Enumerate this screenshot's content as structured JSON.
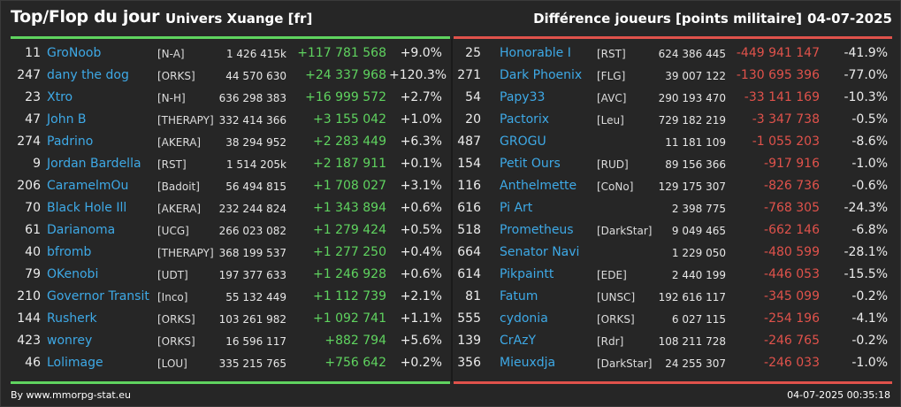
{
  "header": {
    "title": "Top/Flop du jour",
    "universe": "Univers Xuange [fr]",
    "metric": "Différence joueurs [points militaire]",
    "date": "04-07-2025"
  },
  "colors": {
    "top_accent": "#5fd35f",
    "flop_accent": "#e0524b",
    "name_link": "#3ea9e6",
    "background": "#262626"
  },
  "top": [
    {
      "rank": "11",
      "name": "GroNoob",
      "alliance": "[N-A]",
      "points": "1 426 415k",
      "diff": "+117 781 568",
      "pct": "+9.0%"
    },
    {
      "rank": "247",
      "name": "dany the dog",
      "alliance": "[ORKS]",
      "points": "44 570 630",
      "diff": "+24 337 968",
      "pct": "+120.3%"
    },
    {
      "rank": "23",
      "name": "Xtro",
      "alliance": "[N-H]",
      "points": "636 298 383",
      "diff": "+16 999 572",
      "pct": "+2.7%"
    },
    {
      "rank": "47",
      "name": "John B",
      "alliance": "[THERAPY]",
      "points": "332 414 366",
      "diff": "+3 155 042",
      "pct": "+1.0%"
    },
    {
      "rank": "274",
      "name": "Padrino",
      "alliance": "[AKERA]",
      "points": "38 294 952",
      "diff": "+2 283 449",
      "pct": "+6.3%"
    },
    {
      "rank": "9",
      "name": "Jordan Bardella",
      "alliance": "[RST]",
      "points": "1 514 205k",
      "diff": "+2 187 911",
      "pct": "+0.1%"
    },
    {
      "rank": "206",
      "name": "CaramelmOu",
      "alliance": "[Badoit]",
      "points": "56 494 815",
      "diff": "+1 708 027",
      "pct": "+3.1%"
    },
    {
      "rank": "70",
      "name": "Black Hole Ill",
      "alliance": "[AKERA]",
      "points": "232 244 824",
      "diff": "+1 343 894",
      "pct": "+0.6%"
    },
    {
      "rank": "61",
      "name": "Darianoma",
      "alliance": "[UCG]",
      "points": "266 023 082",
      "diff": "+1 279 424",
      "pct": "+0.5%"
    },
    {
      "rank": "40",
      "name": "bfromb",
      "alliance": "[THERAPY]",
      "points": "368 199 537",
      "diff": "+1 277 250",
      "pct": "+0.4%"
    },
    {
      "rank": "79",
      "name": "OKenobi",
      "alliance": "[UDT]",
      "points": "197 377 633",
      "diff": "+1 246 928",
      "pct": "+0.6%"
    },
    {
      "rank": "210",
      "name": "Governor Transit",
      "alliance": "[Inco]",
      "points": "55 132 449",
      "diff": "+1 112 739",
      "pct": "+2.1%"
    },
    {
      "rank": "144",
      "name": "Rusherk",
      "alliance": "[ORKS]",
      "points": "103 261 982",
      "diff": "+1 092 741",
      "pct": "+1.1%"
    },
    {
      "rank": "423",
      "name": "wonrey",
      "alliance": "[ORKS]",
      "points": "16 596 117",
      "diff": "+882 794",
      "pct": "+5.6%"
    },
    {
      "rank": "46",
      "name": "Lolimage",
      "alliance": "[LOU]",
      "points": "335 215 765",
      "diff": "+756 642",
      "pct": "+0.2%"
    }
  ],
  "flop": [
    {
      "rank": "25",
      "name": "Honorable I",
      "alliance": "[RST]",
      "points": "624 386 445",
      "diff": "-449 941 147",
      "pct": "-41.9%"
    },
    {
      "rank": "271",
      "name": "Dark Phoenix",
      "alliance": "[FLG]",
      "points": "39 007 122",
      "diff": "-130 695 396",
      "pct": "-77.0%"
    },
    {
      "rank": "54",
      "name": "Papy33",
      "alliance": "[AVC]",
      "points": "290 193 470",
      "diff": "-33 141 169",
      "pct": "-10.3%"
    },
    {
      "rank": "20",
      "name": "Pactorix",
      "alliance": "[Leu]",
      "points": "729 182 219",
      "diff": "-3 347 738",
      "pct": "-0.5%"
    },
    {
      "rank": "487",
      "name": "GROGU",
      "alliance": "",
      "points": "11 181 109",
      "diff": "-1 055 203",
      "pct": "-8.6%"
    },
    {
      "rank": "154",
      "name": "Petit Ours",
      "alliance": "[RUD]",
      "points": "89 156 366",
      "diff": "-917 916",
      "pct": "-1.0%"
    },
    {
      "rank": "116",
      "name": "Anthelmette",
      "alliance": "[CoNo]",
      "points": "129 175 307",
      "diff": "-826 736",
      "pct": "-0.6%"
    },
    {
      "rank": "616",
      "name": "Pi Art",
      "alliance": "",
      "points": "2 398 775",
      "diff": "-768 305",
      "pct": "-24.3%"
    },
    {
      "rank": "518",
      "name": "Prometheus",
      "alliance": "[DarkStar]",
      "points": "9 049 465",
      "diff": "-662 146",
      "pct": "-6.8%"
    },
    {
      "rank": "664",
      "name": "Senator Navi",
      "alliance": "",
      "points": "1 229 050",
      "diff": "-480 599",
      "pct": "-28.1%"
    },
    {
      "rank": "614",
      "name": "Pikpaintt",
      "alliance": "[EDE]",
      "points": "2 440 199",
      "diff": "-446 053",
      "pct": "-15.5%"
    },
    {
      "rank": "81",
      "name": "Fatum",
      "alliance": "[UNSC]",
      "points": "192 616 117",
      "diff": "-345 099",
      "pct": "-0.2%"
    },
    {
      "rank": "555",
      "name": "cydonia",
      "alliance": "[ORKS]",
      "points": "6 027 115",
      "diff": "-254 196",
      "pct": "-4.1%"
    },
    {
      "rank": "139",
      "name": "CrAzY",
      "alliance": "[Rdr]",
      "points": "108 211 728",
      "diff": "-246 765",
      "pct": "-0.2%"
    },
    {
      "rank": "356",
      "name": "Mieuxdja",
      "alliance": "[DarkStar]",
      "points": "24 255 307",
      "diff": "-246 033",
      "pct": "-1.0%"
    }
  ],
  "footer": {
    "source": "By www.mmorpg-stat.eu",
    "timestamp": "04-07-2025 00:35:18"
  }
}
